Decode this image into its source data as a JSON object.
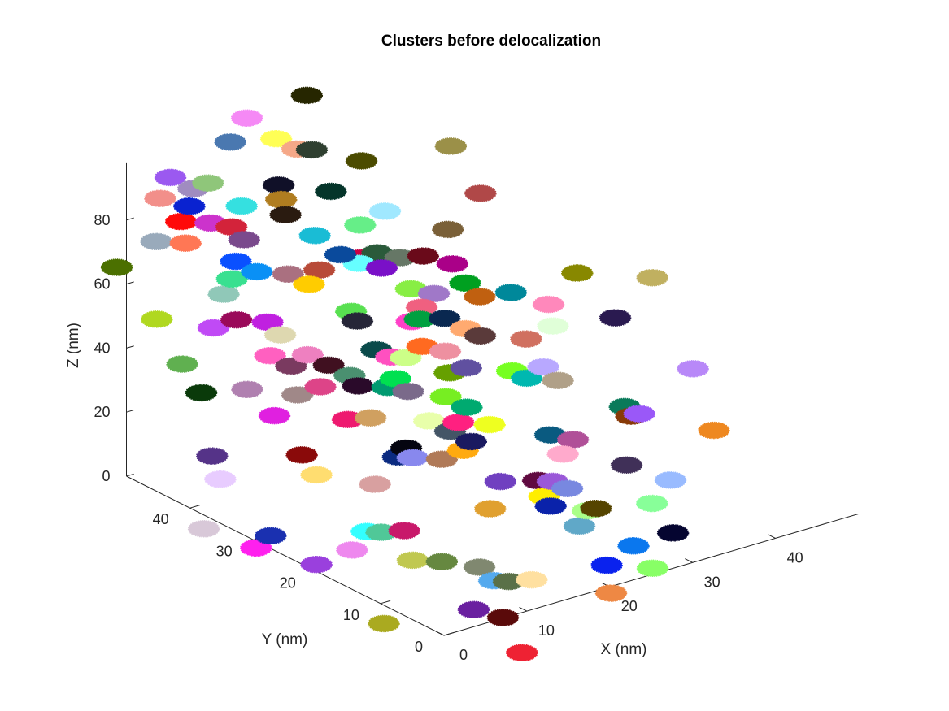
{
  "chart_data": {
    "type": "scatter",
    "projection": "3d",
    "title": "Clusters before delocalization",
    "xlabel": "X (nm)",
    "ylabel": "Y (nm)",
    "zlabel": "Z (nm)",
    "xlim": [
      0,
      50
    ],
    "ylim": [
      0,
      50
    ],
    "zlim": [
      0,
      100
    ],
    "x_ticks": [
      "0",
      "10",
      "20",
      "30",
      "40"
    ],
    "y_ticks": [
      "0",
      "10",
      "20",
      "30",
      "40"
    ],
    "z_ticks": [
      "0",
      "20",
      "40",
      "60",
      "80"
    ],
    "grid": false,
    "legend": "none",
    "marker": "filled disc of localizations",
    "series": [
      {
        "x": 3.0,
        "y": 47.0,
        "z": 94.0,
        "color": "#9b59f0"
      },
      {
        "x": 6.0,
        "y": 45.0,
        "z": 92.0,
        "color": "#8fc67a"
      },
      {
        "x": 11.0,
        "y": 48.0,
        "z": 98.0,
        "color": "#4a78b0"
      },
      {
        "x": 13.0,
        "y": 48.0,
        "z": 104.0,
        "color": "#f589f5"
      },
      {
        "x": 15.0,
        "y": 46.0,
        "z": 98.0,
        "color": "#ffff55"
      },
      {
        "x": 16.0,
        "y": 44.0,
        "z": 96.0,
        "color": "#f5a888"
      },
      {
        "x": 17.0,
        "y": 43.0,
        "z": 96.0,
        "color": "#2f3f30"
      },
      {
        "x": 21.0,
        "y": 49.0,
        "z": 104.0,
        "color": "#262600"
      },
      {
        "x": 1.0,
        "y": 46.0,
        "z": 90.0,
        "color": "#f28f8a"
      },
      {
        "x": 3.0,
        "y": 44.0,
        "z": 88.0,
        "color": "#0a22d0"
      },
      {
        "x": 5.0,
        "y": 46.0,
        "z": 90.0,
        "color": "#a08cc0"
      },
      {
        "x": 7.0,
        "y": 41.0,
        "z": 88.0,
        "color": "#35e0e0"
      },
      {
        "x": 10.0,
        "y": 38.0,
        "z": 86.0,
        "color": "#2a1b10"
      },
      {
        "x": 11.0,
        "y": 40.0,
        "z": 88.0,
        "color": "#b07d20"
      },
      {
        "x": 13.0,
        "y": 43.0,
        "z": 88.0,
        "color": "#101028"
      },
      {
        "x": 17.0,
        "y": 40.0,
        "z": 86.0,
        "color": "#05352a"
      },
      {
        "x": 23.0,
        "y": 43.0,
        "z": 88.0,
        "color": "#4b4b00"
      },
      {
        "x": 33.0,
        "y": 42.0,
        "z": 86.0,
        "color": "#9b9048"
      },
      {
        "x": 4.0,
        "y": 42.0,
        "z": 84.0,
        "color": "#cc33cc"
      },
      {
        "x": 5.0,
        "y": 40.0,
        "z": 84.0,
        "color": "#d3233a"
      },
      {
        "x": 5.0,
        "y": 38.0,
        "z": 82.0,
        "color": "#7a4a8c"
      },
      {
        "x": 2.0,
        "y": 44.0,
        "z": 84.0,
        "color": "#ff0a0a"
      },
      {
        "x": 1.0,
        "y": 42.0,
        "z": 80.0,
        "color": "#ff7755"
      },
      {
        "x": -1.0,
        "y": 44.0,
        "z": 80.0,
        "color": "#99aabb"
      },
      {
        "x": 12.0,
        "y": 36.0,
        "z": 80.0,
        "color": "#1abcd5"
      },
      {
        "x": 12.0,
        "y": 32.0,
        "z": 78.0,
        "color": "#0a4a9c"
      },
      {
        "x": 4.0,
        "y": 38.0,
        "z": 76.0,
        "color": "#0a50ff"
      },
      {
        "x": 2.0,
        "y": 36.0,
        "z": 74.0,
        "color": "#39e090"
      },
      {
        "x": 5.0,
        "y": 36.0,
        "z": 74.0,
        "color": "#0a90f5"
      },
      {
        "x": 22.0,
        "y": 38.0,
        "z": 78.0,
        "color": "#a0e8ff"
      },
      {
        "x": 25.0,
        "y": 32.0,
        "z": 76.0,
        "color": "#7a6038"
      },
      {
        "x": 32.0,
        "y": 36.0,
        "z": 78.0,
        "color": "#b04848"
      },
      {
        "x": 19.0,
        "y": 38.0,
        "z": 76.0,
        "color": "#66ee88"
      },
      {
        "x": -5.0,
        "y": 45.0,
        "z": 74.0,
        "color": "#4b7000"
      },
      {
        "x": 1.0,
        "y": 36.0,
        "z": 70.0,
        "color": "#90c8b8"
      },
      {
        "x": 8.0,
        "y": 35.0,
        "z": 72.0,
        "color": "#aa7080"
      },
      {
        "x": 9.0,
        "y": 33.0,
        "z": 70.0,
        "color": "#ffcc00"
      },
      {
        "x": 11.0,
        "y": 34.0,
        "z": 72.0,
        "color": "#b84a38"
      },
      {
        "x": 15.0,
        "y": 33.0,
        "z": 72.0,
        "color": "#66ffff"
      },
      {
        "x": 16.0,
        "y": 34.0,
        "z": 72.0,
        "color": "#cc0044"
      },
      {
        "x": 17.0,
        "y": 32.0,
        "z": 70.0,
        "color": "#7a10c8"
      },
      {
        "x": 18.0,
        "y": 34.0,
        "z": 72.0,
        "color": "#2a5a3a"
      },
      {
        "x": 22.0,
        "y": 32.0,
        "z": 70.0,
        "color": "#6a0a1a"
      },
      {
        "x": 20.0,
        "y": 33.0,
        "z": 70.0,
        "color": "#667766"
      },
      {
        "x": 24.0,
        "y": 30.0,
        "z": 68.0,
        "color": "#aa0088"
      },
      {
        "x": 1.0,
        "y": 34.0,
        "z": 64.0,
        "color": "#9a0a5a"
      },
      {
        "x": -1.0,
        "y": 35.0,
        "z": 62.0,
        "color": "#c04af5"
      },
      {
        "x": -4.0,
        "y": 40.0,
        "z": 62.0,
        "color": "#b0d820"
      },
      {
        "x": 4.0,
        "y": 33.0,
        "z": 62.0,
        "color": "#c020e0"
      },
      {
        "x": 4.0,
        "y": 31.0,
        "z": 60.0,
        "color": "#ded8b0"
      },
      {
        "x": 11.0,
        "y": 29.0,
        "z": 64.0,
        "color": "#58e050"
      },
      {
        "x": 11.0,
        "y": 28.0,
        "z": 62.0,
        "color": "#262638"
      },
      {
        "x": 19.0,
        "y": 30.0,
        "z": 64.0,
        "color": "#88ee44"
      },
      {
        "x": 21.0,
        "y": 29.0,
        "z": 62.0,
        "color": "#a078c8"
      },
      {
        "x": 24.0,
        "y": 28.0,
        "z": 64.0,
        "color": "#00a020"
      },
      {
        "x": 16.0,
        "y": 26.0,
        "z": 60.0,
        "color": "#ff40c8"
      },
      {
        "x": 17.0,
        "y": 26.0,
        "z": 60.0,
        "color": "#00a040"
      },
      {
        "x": 18.0,
        "y": 27.0,
        "z": 62.0,
        "color": "#f06080"
      },
      {
        "x": 20.0,
        "y": 26.0,
        "z": 58.0,
        "color": "#0a2850"
      },
      {
        "x": 25.0,
        "y": 27.0,
        "z": 60.0,
        "color": "#c06010"
      },
      {
        "x": 28.0,
        "y": 26.0,
        "z": 60.0,
        "color": "#00889a"
      },
      {
        "x": 2.0,
        "y": 30.0,
        "z": 56.0,
        "color": "#ff60c0"
      },
      {
        "x": 5.0,
        "y": 28.0,
        "z": 56.0,
        "color": "#ee80c0"
      },
      {
        "x": 3.0,
        "y": 28.0,
        "z": 54.0,
        "color": "#7a3a60"
      },
      {
        "x": 6.0,
        "y": 26.0,
        "z": 54.0,
        "color": "#401020"
      },
      {
        "x": 7.0,
        "y": 24.0,
        "z": 52.0,
        "color": "#4a9070"
      },
      {
        "x": 11.0,
        "y": 25.0,
        "z": 56.0,
        "color": "#0a4a4a"
      },
      {
        "x": 12.0,
        "y": 24.0,
        "z": 54.0,
        "color": "#ff50c0"
      },
      {
        "x": 13.0,
        "y": 23.0,
        "z": 54.0,
        "color": "#ccff88"
      },
      {
        "x": 15.0,
        "y": 23.0,
        "z": 56.0,
        "color": "#ff6a20"
      },
      {
        "x": 17.0,
        "y": 22.0,
        "z": 54.0,
        "color": "#ee90a0"
      },
      {
        "x": 21.0,
        "y": 24.0,
        "z": 56.0,
        "color": "#ffaa70"
      },
      {
        "x": 22.0,
        "y": 23.0,
        "z": 54.0,
        "color": "#5a3a3a"
      },
      {
        "x": 26.0,
        "y": 21.0,
        "z": 52.0,
        "color": "#d07060"
      },
      {
        "x": 31.0,
        "y": 24.0,
        "z": 56.0,
        "color": "#ff88bb"
      },
      {
        "x": 36.0,
        "y": 26.0,
        "z": 60.0,
        "color": "#888800"
      },
      {
        "x": -4.0,
        "y": 36.0,
        "z": 52.0,
        "color": "#60b050"
      },
      {
        "x": -4.0,
        "y": 33.0,
        "z": 46.0,
        "color": "#0a3a0a"
      },
      {
        "x": 0.0,
        "y": 31.0,
        "z": 46.0,
        "color": "#b080b0"
      },
      {
        "x": 3.0,
        "y": 27.0,
        "z": 46.0,
        "color": "#a08888"
      },
      {
        "x": 5.0,
        "y": 26.0,
        "z": 48.0,
        "color": "#dd4488"
      },
      {
        "x": 8.0,
        "y": 24.0,
        "z": 48.0,
        "color": "#2a0a2a"
      },
      {
        "x": 10.0,
        "y": 22.0,
        "z": 48.0,
        "color": "#009a70"
      },
      {
        "x": 11.0,
        "y": 22.0,
        "z": 50.0,
        "color": "#00e050"
      },
      {
        "x": 11.0,
        "y": 20.0,
        "z": 48.0,
        "color": "#7a6a8a"
      },
      {
        "x": 16.0,
        "y": 20.0,
        "z": 50.0,
        "color": "#66a000"
      },
      {
        "x": 18.0,
        "y": 20.0,
        "z": 50.0,
        "color": "#6050a0"
      },
      {
        "x": 14.0,
        "y": 18.0,
        "z": 46.0,
        "color": "#77ee22"
      },
      {
        "x": 15.0,
        "y": 16.0,
        "z": 44.0,
        "color": "#00aa70"
      },
      {
        "x": 22.0,
        "y": 18.0,
        "z": 48.0,
        "color": "#77ff22"
      },
      {
        "x": 23.0,
        "y": 17.0,
        "z": 46.0,
        "color": "#00b8b0"
      },
      {
        "x": 25.0,
        "y": 17.0,
        "z": 48.0,
        "color": "#b8a8ff"
      },
      {
        "x": 26.0,
        "y": 16.0,
        "z": 44.0,
        "color": "#b0a088"
      },
      {
        "x": 30.0,
        "y": 22.0,
        "z": 52.0,
        "color": "#e0ffd8"
      },
      {
        "x": 36.0,
        "y": 20.0,
        "z": 52.0,
        "color": "#2a1a50"
      },
      {
        "x": 42.0,
        "y": 22.0,
        "z": 58.0,
        "color": "#c0b060"
      },
      {
        "x": 1.0,
        "y": 28.0,
        "z": 40.0,
        "color": "#e020e0"
      },
      {
        "x": 6.0,
        "y": 23.0,
        "z": 40.0,
        "color": "#ee1a70"
      },
      {
        "x": 8.0,
        "y": 22.0,
        "z": 40.0,
        "color": "#d0a060"
      },
      {
        "x": 12.0,
        "y": 18.0,
        "z": 40.0,
        "color": "#e8ffaa"
      },
      {
        "x": 14.0,
        "y": 16.0,
        "z": 40.0,
        "color": "#ff2080"
      },
      {
        "x": 13.0,
        "y": 16.0,
        "z": 38.0,
        "color": "#445566"
      },
      {
        "x": 14.0,
        "y": 14.0,
        "z": 36.0,
        "color": "#1a1a60"
      },
      {
        "x": 17.0,
        "y": 15.0,
        "z": 38.0,
        "color": "#eeff20"
      },
      {
        "x": 13.0,
        "y": 14.0,
        "z": 34.0,
        "color": "#ffaa10"
      },
      {
        "x": 22.0,
        "y": 12.0,
        "z": 34.0,
        "color": "#0a5a80"
      },
      {
        "x": 24.0,
        "y": 11.0,
        "z": 32.0,
        "color": "#b05098"
      },
      {
        "x": 22.0,
        "y": 10.0,
        "z": 30.0,
        "color": "#ffaacc"
      },
      {
        "x": 31.0,
        "y": 11.0,
        "z": 34.0,
        "color": "#883a08"
      },
      {
        "x": 31.0,
        "y": 12.0,
        "z": 36.0,
        "color": "#0a7a5a"
      },
      {
        "x": 32.0,
        "y": 11.0,
        "z": 34.0,
        "color": "#9a58f8"
      },
      {
        "x": 40.0,
        "y": 13.0,
        "z": 40.0,
        "color": "#b888f8"
      },
      {
        "x": -5.0,
        "y": 30.0,
        "z": 30.0,
        "color": "#553388"
      },
      {
        "x": 2.0,
        "y": 25.0,
        "z": 30.0,
        "color": "#8a0a0a"
      },
      {
        "x": 9.0,
        "y": 19.0,
        "z": 30.0,
        "color": "#0a2a80"
      },
      {
        "x": 10.0,
        "y": 19.0,
        "z": 32.0,
        "color": "#050510"
      },
      {
        "x": 10.0,
        "y": 18.0,
        "z": 30.0,
        "color": "#8888ee"
      },
      {
        "x": 12.0,
        "y": 16.0,
        "z": 30.0,
        "color": "#b07a58"
      },
      {
        "x": -4.0,
        "y": 30.0,
        "z": 22.0,
        "color": "#e8ccff"
      },
      {
        "x": 3.0,
        "y": 24.0,
        "z": 24.0,
        "color": "#ffdd70"
      },
      {
        "x": 7.0,
        "y": 20.0,
        "z": 22.0,
        "color": "#d8a0a0"
      },
      {
        "x": 16.0,
        "y": 12.0,
        "z": 24.0,
        "color": "#7040c0"
      },
      {
        "x": 19.0,
        "y": 10.0,
        "z": 24.0,
        "color": "#600a40"
      },
      {
        "x": 20.0,
        "y": 9.0,
        "z": 24.0,
        "color": "#9a58d8"
      },
      {
        "x": 21.0,
        "y": 8.0,
        "z": 22.0,
        "color": "#7888e0"
      },
      {
        "x": 19.0,
        "y": 9.0,
        "z": 20.0,
        "color": "#ffee00"
      },
      {
        "x": 19.0,
        "y": 8.0,
        "z": 18.0,
        "color": "#0a22aa"
      },
      {
        "x": 14.0,
        "y": 11.0,
        "z": 18.0,
        "color": "#e0a030"
      },
      {
        "x": -6.0,
        "y": 30.0,
        "z": 8.0,
        "color": "#d8c8d8"
      },
      {
        "x": -1.0,
        "y": 26.0,
        "z": 6.0,
        "color": "#1a30b0"
      },
      {
        "x": 6.0,
        "y": 20.0,
        "z": 8.0,
        "color": "#33ffff"
      },
      {
        "x": 7.0,
        "y": 19.0,
        "z": 8.0,
        "color": "#50c898"
      },
      {
        "x": 9.0,
        "y": 18.0,
        "z": 8.0,
        "color": "#c8186a"
      },
      {
        "x": -2.0,
        "y": 27.0,
        "z": 2.0,
        "color": "#ff20ee"
      },
      {
        "x": 5.0,
        "y": 21.0,
        "z": 2.0,
        "color": "#ee88ee"
      },
      {
        "x": 3.0,
        "y": 24.0,
        "z": -4.0,
        "color": "#9a40dd"
      },
      {
        "x": 10.0,
        "y": 18.0,
        "z": -2.0,
        "color": "#c0c850"
      },
      {
        "x": 12.0,
        "y": 16.0,
        "z": -2.0,
        "color": "#668840"
      },
      {
        "x": 15.0,
        "y": 14.0,
        "z": -4.0,
        "color": "#808870"
      },
      {
        "x": 16.0,
        "y": 13.0,
        "z": -8.0,
        "color": "#55aaee"
      },
      {
        "x": 17.0,
        "y": 12.0,
        "z": -8.0,
        "color": "#5a7048"
      },
      {
        "x": 19.0,
        "y": 11.0,
        "z": -8.0,
        "color": "#ffe0a0"
      },
      {
        "x": 24.0,
        "y": 10.0,
        "z": 6.0,
        "color": "#60a8c8"
      },
      {
        "x": 25.0,
        "y": 10.0,
        "z": 10.0,
        "color": "#aaff88"
      },
      {
        "x": 26.0,
        "y": 10.0,
        "z": 10.0,
        "color": "#554400"
      },
      {
        "x": 32.0,
        "y": 13.0,
        "z": 16.0,
        "color": "#403058"
      },
      {
        "x": 32.0,
        "y": 9.0,
        "z": 8.0,
        "color": "#88ff99"
      },
      {
        "x": 35.0,
        "y": 10.0,
        "z": 12.0,
        "color": "#99bbff"
      },
      {
        "x": 41.0,
        "y": 11.0,
        "z": 22.0,
        "color": "#ee8820"
      },
      {
        "x": 25.0,
        "y": 7.0,
        "z": -4.0,
        "color": "#0a22ee"
      },
      {
        "x": 29.0,
        "y": 8.0,
        "z": -2.0,
        "color": "#0a77ee"
      },
      {
        "x": 33.0,
        "y": 7.0,
        "z": 0.0,
        "color": "#050530"
      },
      {
        "x": 5.0,
        "y": 16.0,
        "z": -16.0,
        "color": "#aaaa20"
      },
      {
        "x": 12.0,
        "y": 11.0,
        "z": -12.0,
        "color": "#6a20a0"
      },
      {
        "x": 14.0,
        "y": 9.0,
        "z": -14.0,
        "color": "#5a0a0a"
      },
      {
        "x": 24.0,
        "y": 5.0,
        "z": -10.0,
        "color": "#ee8844"
      },
      {
        "x": 29.0,
        "y": 5.0,
        "z": -6.0,
        "color": "#88ff66"
      },
      {
        "x": 14.0,
        "y": 6.0,
        "z": -22.0,
        "color": "#ee2233"
      }
    ]
  }
}
